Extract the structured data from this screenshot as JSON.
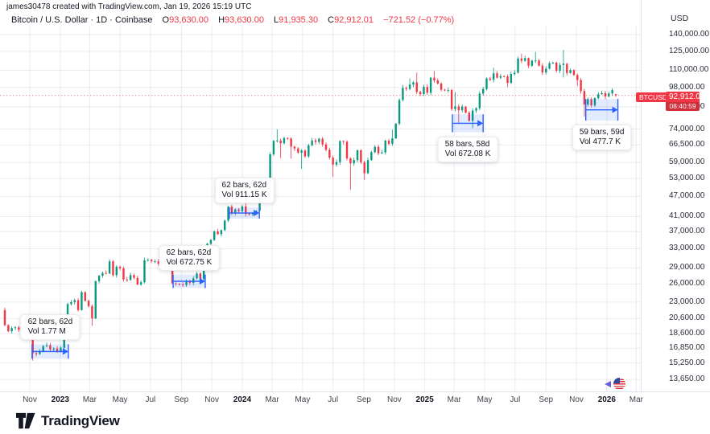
{
  "attribution": "james30478 created with TradingView.com, Jan 19, 2026 15:19 UTC",
  "header": {
    "title": "Bitcoin / U.S. Dollar · 1D · Coinbase",
    "ohlc": {
      "o_label": "O",
      "o": "93,630.00",
      "h_label": "H",
      "h": "93,630.00",
      "l_label": "L",
      "l": "91,935.30",
      "c_label": "C",
      "c": "92,912.01",
      "change": "−721.52 (−0.77%)"
    }
  },
  "price_scale": {
    "unit": "USD",
    "ticks": [
      {
        "text": "140,000.00",
        "value": 140000
      },
      {
        "text": "125,000.00",
        "value": 125000
      },
      {
        "text": "110,000.00",
        "value": 110000
      },
      {
        "text": "98,000.00",
        "value": 98000
      },
      {
        "text": "86,000.00",
        "value": 86000
      },
      {
        "text": "74,000.00",
        "value": 74000
      },
      {
        "text": "66,500.00",
        "value": 66500
      },
      {
        "text": "59,000.00",
        "value": 59000
      },
      {
        "text": "53,000.00",
        "value": 53000
      },
      {
        "text": "47,000.00",
        "value": 47000
      },
      {
        "text": "41,000.00",
        "value": 41000
      },
      {
        "text": "37,000.00",
        "value": 37000
      },
      {
        "text": "33,000.00",
        "value": 33000
      },
      {
        "text": "29,000.00",
        "value": 29000
      },
      {
        "text": "26,000.00",
        "value": 26000
      },
      {
        "text": "23,000.00",
        "value": 23000
      },
      {
        "text": "20,600.00",
        "value": 20600
      },
      {
        "text": "18,600.00",
        "value": 18600
      },
      {
        "text": "16,850.00",
        "value": 16850
      },
      {
        "text": "15,250.00",
        "value": 15250
      },
      {
        "text": "13,650.00",
        "value": 13650
      }
    ]
  },
  "time_scale": {
    "labels": [
      {
        "text": "Nov",
        "days": 50,
        "bold": false
      },
      {
        "text": "2023",
        "days": 111,
        "bold": true
      },
      {
        "text": "Mar",
        "days": 170,
        "bold": false
      },
      {
        "text": "May",
        "days": 231,
        "bold": false
      },
      {
        "text": "Jul",
        "days": 292,
        "bold": false
      },
      {
        "text": "Sep",
        "days": 354,
        "bold": false
      },
      {
        "text": "Nov",
        "days": 415,
        "bold": false
      },
      {
        "text": "2024",
        "days": 476,
        "bold": true
      },
      {
        "text": "Mar",
        "days": 536,
        "bold": false
      },
      {
        "text": "May",
        "days": 597,
        "bold": false
      },
      {
        "text": "Jul",
        "days": 658,
        "bold": false
      },
      {
        "text": "Sep",
        "days": 720,
        "bold": false
      },
      {
        "text": "Nov",
        "days": 781,
        "bold": false
      },
      {
        "text": "2025",
        "days": 842,
        "bold": true
      },
      {
        "text": "Mar",
        "days": 901,
        "bold": false
      },
      {
        "text": "May",
        "days": 962,
        "bold": false
      },
      {
        "text": "Jul",
        "days": 1023,
        "bold": false
      },
      {
        "text": "Sep",
        "days": 1085,
        "bold": false
      },
      {
        "text": "Nov",
        "days": 1146,
        "bold": false
      },
      {
        "text": "2026",
        "days": 1207,
        "bold": true
      },
      {
        "text": "Mar",
        "days": 1266,
        "bold": false
      }
    ]
  },
  "price_label": {
    "symbol": "BTCUSD",
    "price": "92,912.01",
    "countdown": "08:40:59",
    "value": 92912.01
  },
  "annotations": [
    {
      "line1": "62 bars, 62d",
      "line2": "Vol 1.77 M",
      "week_start": 7.8,
      "week_end": 18.2,
      "price_top": 17300,
      "price_bottom": 15700,
      "label_side": "above"
    },
    {
      "line1": "62 bars, 62d",
      "line2": "Vol 672.75 K",
      "week_start": 48.2,
      "week_end": 57.4,
      "price_top": 27700,
      "price_bottom": 25300,
      "label_side": "above"
    },
    {
      "line1": "62 bars, 62d",
      "line2": "Vol 911.15 K",
      "week_start": 64.3,
      "week_end": 72.9,
      "price_top": 43600,
      "price_bottom": 40400,
      "label_side": "above"
    },
    {
      "line1": "58 bars, 58d",
      "line2": "Vol 672.08 K",
      "week_start": 128.2,
      "week_end": 137.0,
      "price_top": 81700,
      "price_bottom": 72400,
      "label_side": "below"
    },
    {
      "line1": "59 bars, 59d",
      "line2": "Vol 477.7 K",
      "week_start": 166.4,
      "week_end": 175.6,
      "price_top": 90600,
      "price_bottom": 78300,
      "label_side": "below"
    }
  ],
  "chart_data": {
    "type": "candlestick",
    "symbol": "BTCUSD",
    "exchange": "Coinbase",
    "interval_shown": "1D (approximated here as weekly candles)",
    "x_start": "2022-09-12",
    "x_end": "2026-01-19",
    "unit": "kUSD",
    "y_axis": {
      "scale": "log",
      "min": 13650,
      "max": 140000
    },
    "first_open": 21.8,
    "weekly_closes": [
      19.7,
      18.9,
      19.3,
      19.4,
      19.1,
      19.2,
      20.8,
      20.5,
      16.3,
      16.2,
      16.5,
      17.1,
      17.2,
      16.7,
      16.8,
      16.5,
      16.9,
      20.9,
      22.7,
      23.0,
      23.3,
      21.8,
      24.6,
      23.2,
      22.4,
      20.6,
      26.5,
      27.5,
      28.0,
      27.9,
      30.3,
      27.6,
      29.2,
      28.9,
      26.8,
      26.7,
      27.6,
      27.1,
      25.9,
      26.3,
      30.5,
      30.6,
      30.3,
      30.3,
      29.8,
      29.3,
      29.0,
      29.4,
      26.1,
      26.0,
      25.9,
      25.8,
      26.5,
      26.2,
      27.0,
      27.9,
      26.9,
      29.9,
      34.1,
      35.0,
      37.1,
      36.4,
      37.4,
      39.9,
      43.8,
      41.9,
      43.0,
      42.5,
      43.9,
      41.7,
      41.6,
      42.0,
      42.6,
      48.3,
      52.1,
      51.7,
      62.4,
      68.3,
      68.4,
      67.2,
      69.6,
      69.4,
      65.7,
      64.9,
      63.1,
      64.0,
      61.5,
      66.3,
      68.5,
      67.8,
      69.3,
      66.7,
      64.3,
      61.0,
      58.2,
      59.2,
      68.2,
      67.9,
      60.7,
      58.7,
      60.0,
      64.1,
      59.1,
      54.9,
      60.0,
      63.3,
      65.6,
      62.8,
      63.2,
      68.4,
      67.0,
      69.5,
      76.7,
      90.0,
      97.7,
      97.0,
      99.9,
      101.4,
      95.1,
      93.7,
      98.3,
      94.5,
      104.6,
      102.7,
      100.6,
      96.5,
      96.1,
      96.3,
      84.7,
      86.2,
      84.0,
      86.1,
      82.6,
      78.2,
      83.8,
      85.2,
      94.0,
      96.9,
      104.1,
      103.2,
      107.8,
      104.6,
      105.7,
      105.5,
      101.0,
      107.3,
      108.2,
      119.1,
      117.3,
      119.4,
      113.4,
      117.4,
      117.5,
      113.5,
      108.4,
      111.2,
      115.4,
      115.8,
      109.7,
      114.0,
      115.0,
      108.0,
      110.1,
      106.5,
      103.0,
      95.6,
      87.3,
      90.5,
      86.8,
      91.2,
      93.6,
      94.3,
      92.2,
      94.1,
      96.2,
      92.912
    ],
    "wick_overrides": {
      "8": {
        "l": 15.5
      },
      "25": {
        "l": 19.6
      },
      "69": {
        "h": 49.0
      },
      "78": {
        "h": 73.8
      },
      "79": {
        "l": 60.8
      },
      "82": {
        "l": 60.6
      },
      "85": {
        "l": 56.5
      },
      "94": {
        "l": 53.5
      },
      "99": {
        "l": 49.1
      },
      "103": {
        "l": 52.5
      },
      "111": {
        "h": 73.6
      },
      "114": {
        "h": 99.6
      },
      "116": {
        "h": 104.1
      },
      "118": {
        "h": 108.3
      },
      "123": {
        "h": 109.4
      },
      "129": {
        "h": 95.0
      },
      "130": {
        "l": 76.6
      },
      "134": {
        "l": 74.4
      },
      "140": {
        "h": 111.9
      },
      "144": {
        "l": 98.2
      },
      "148": {
        "h": 123.1
      },
      "152": {
        "h": 124.5
      },
      "160": {
        "h": 126.3,
        "l": 104.8
      },
      "164": {
        "l": 98.9
      },
      "166": {
        "l": 80.5
      }
    },
    "last_candle": {
      "o": 93.63,
      "h": 93.63,
      "l": 91.935,
      "c": 92.912
    }
  },
  "colors": {
    "up": "#089981",
    "down": "#f23645",
    "measure_blue": "#2962ff",
    "measure_fill": "rgba(41,98,255,0.13)",
    "label_red": "#f23645",
    "grid": "rgba(145,152,170,0.18)",
    "axis_border": "#e0e3eb",
    "price_line": "rgba(242,54,69,0.55)"
  },
  "footer": {
    "logo_text": "TradingView"
  }
}
